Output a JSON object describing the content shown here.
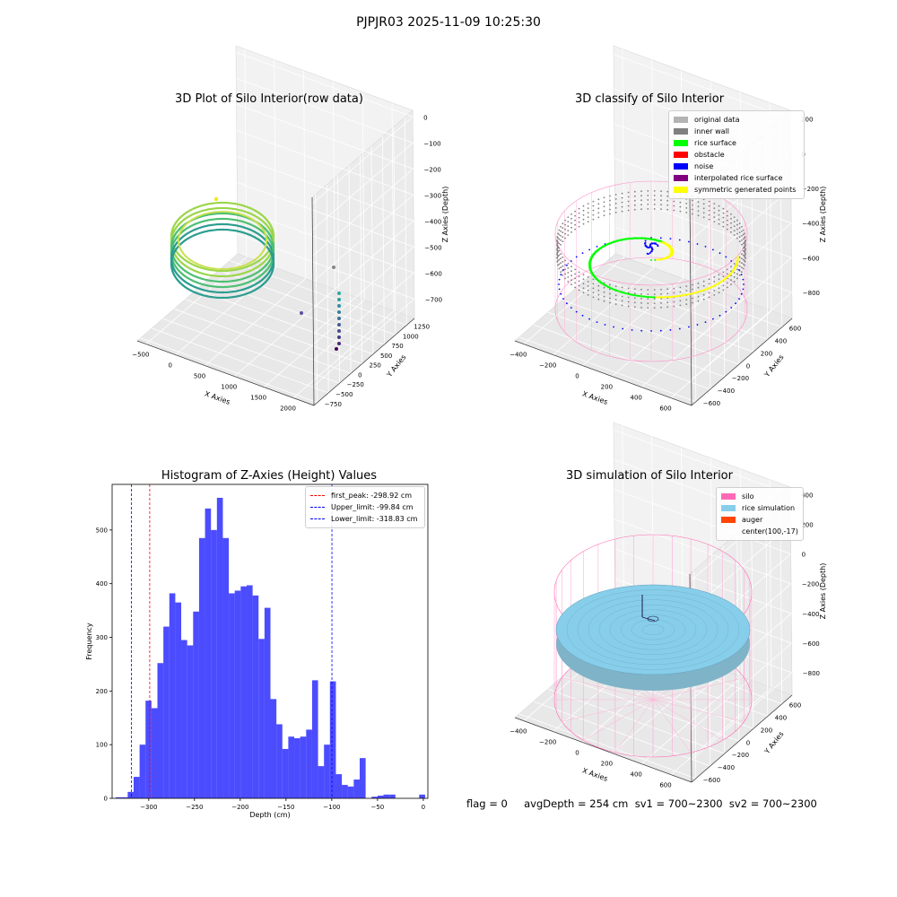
{
  "figure": {
    "suptitle": "PJPJR03 2025-11-09 10:25:30"
  },
  "panels": {
    "raw": {
      "title": "3D Plot of Silo Interior(row data)",
      "xlabel": "X Axies",
      "ylabel": "Y Axies",
      "zlabel": "Z Axies (Depth)",
      "xticks": [
        "−500",
        "0",
        "500",
        "1000",
        "1500",
        "2000"
      ],
      "yticks": [
        "−750",
        "−500",
        "−250",
        "0",
        "250",
        "500",
        "750",
        "1000",
        "1250"
      ],
      "zticks": [
        "0",
        "−100",
        "−200",
        "−300",
        "−400",
        "−500",
        "−600",
        "−700"
      ]
    },
    "classify": {
      "title": "3D classify of Silo Interior",
      "xlabel": "X Axies",
      "ylabel": "Y Axies",
      "zlabel": "Z Axies (Depth)",
      "xticks": [
        "−400",
        "−200",
        "0",
        "200",
        "400",
        "600"
      ],
      "yticks": [
        "−600",
        "−400",
        "−200",
        "0",
        "200",
        "400",
        "600"
      ],
      "zticks": [
        "200",
        "0",
        "−200",
        "−400",
        "−600",
        "−800"
      ],
      "zticks_partial": "00",
      "legend": [
        {
          "label": "original data",
          "color": "#b3b3b3"
        },
        {
          "label": "inner wall",
          "color": "#808080"
        },
        {
          "label": "rice surface",
          "color": "#00ff00"
        },
        {
          "label": "obstacle",
          "color": "#ff0000"
        },
        {
          "label": "noise",
          "color": "#0000ff"
        },
        {
          "label": "interpolated rice surface",
          "color": "#800080"
        },
        {
          "label": "symmetric generated points",
          "color": "#ffff00"
        }
      ]
    },
    "simulation": {
      "title": "3D simulation of Silo Interior",
      "xlabel": "X Axies",
      "ylabel": "Y Axies",
      "zlabel": "Z Axies (Depth)",
      "xticks": [
        "−400",
        "−200",
        "0",
        "200",
        "400",
        "600"
      ],
      "yticks": [
        "−600",
        "−400",
        "−200",
        "0",
        "200",
        "400",
        "600"
      ],
      "zticks": [
        "400",
        "200",
        "0",
        "−200",
        "−400",
        "−600",
        "−800"
      ],
      "legend": [
        {
          "label": "silo",
          "color": "#ff69b4"
        },
        {
          "label": "rice simulation",
          "color": "#87ceeb"
        },
        {
          "label": "auger",
          "color": "#ff4500"
        },
        {
          "label": "center(100,-17)",
          "color": "none"
        }
      ]
    }
  },
  "footer": {
    "text": "flag = 0     avgDepth = 254 cm  sv1 = 700~2300  sv2 = 700~2300"
  },
  "chart_data": {
    "type": "bar",
    "title": "Histogram of Z-Axies (Height) Values",
    "xlabel": "Depth (cm)",
    "ylabel": "Frequency",
    "xlim": [
      -340,
      5
    ],
    "ylim": [
      0,
      585
    ],
    "xticks": [
      -300,
      -250,
      -200,
      -150,
      -100,
      -50,
      0
    ],
    "yticks": [
      0,
      100,
      200,
      300,
      400,
      500
    ],
    "bar_color": "#0000ff",
    "bin_width": 6.5,
    "bin_starts": [
      -336,
      -329.5,
      -323,
      -316.5,
      -310,
      -303.5,
      -297,
      -290.5,
      -284,
      -277.5,
      -271,
      -264.5,
      -258,
      -251.5,
      -245,
      -238.5,
      -232,
      -225.5,
      -219,
      -212.5,
      -206,
      -199.5,
      -193,
      -186.5,
      -180,
      -173.5,
      -167,
      -160.5,
      -154,
      -147.5,
      -141,
      -134.5,
      -128,
      -121.5,
      -115,
      -108.5,
      -102,
      -95.5,
      -89,
      -82.5,
      -76,
      -69.5,
      -63,
      -56.5,
      -50,
      -43.5,
      -37,
      -30.5,
      -24,
      -17.5,
      -11,
      -4.5
    ],
    "values": [
      2,
      2,
      12,
      40,
      100,
      182,
      168,
      252,
      320,
      382,
      365,
      295,
      285,
      348,
      485,
      540,
      500,
      560,
      485,
      382,
      387,
      395,
      397,
      378,
      297,
      355,
      185,
      138,
      92,
      115,
      112,
      115,
      128,
      220,
      60,
      100,
      218,
      45,
      25,
      22,
      35,
      75,
      0,
      3,
      5,
      7,
      7,
      0,
      0,
      0,
      0,
      7
    ],
    "vlines": [
      {
        "label": "first_peak: -298.92 cm",
        "x": -298.92,
        "color": "#ff0000"
      },
      {
        "label": "Upper_limit: -99.84 cm",
        "x": -99.84,
        "color": "#0000ff"
      },
      {
        "label": "Lower_limit: -318.83 cm",
        "x": -318.83,
        "color": "#0000ff"
      }
    ]
  }
}
